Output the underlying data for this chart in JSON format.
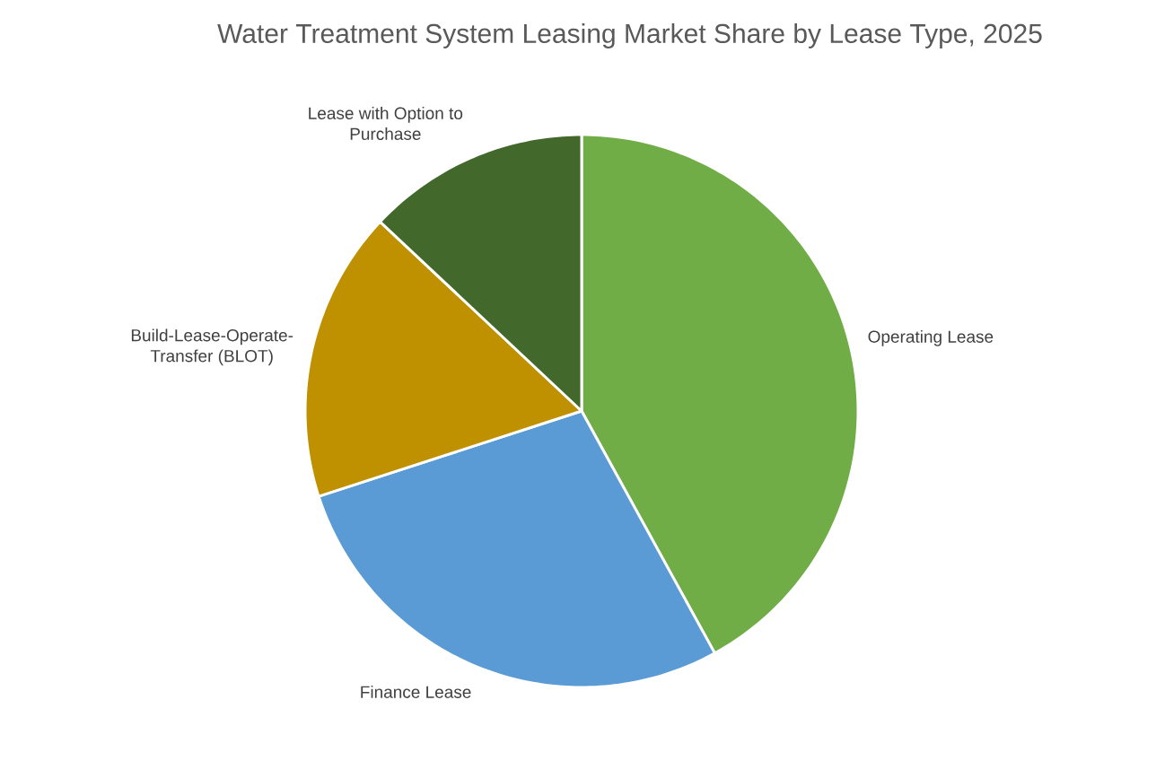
{
  "chart_data": {
    "type": "pie",
    "title": "Water Treatment System Leasing Market Share by Lease Type, 2025",
    "categories": [
      "Operating Lease",
      "Finance Lease",
      "Build-Lease-Operate-Transfer (BLOT)",
      "Lease with Option to Purchase"
    ],
    "values": [
      42,
      28,
      17,
      13
    ],
    "colors": [
      "#70ad47",
      "#5b9bd5",
      "#bf9000",
      "#43682b"
    ]
  }
}
